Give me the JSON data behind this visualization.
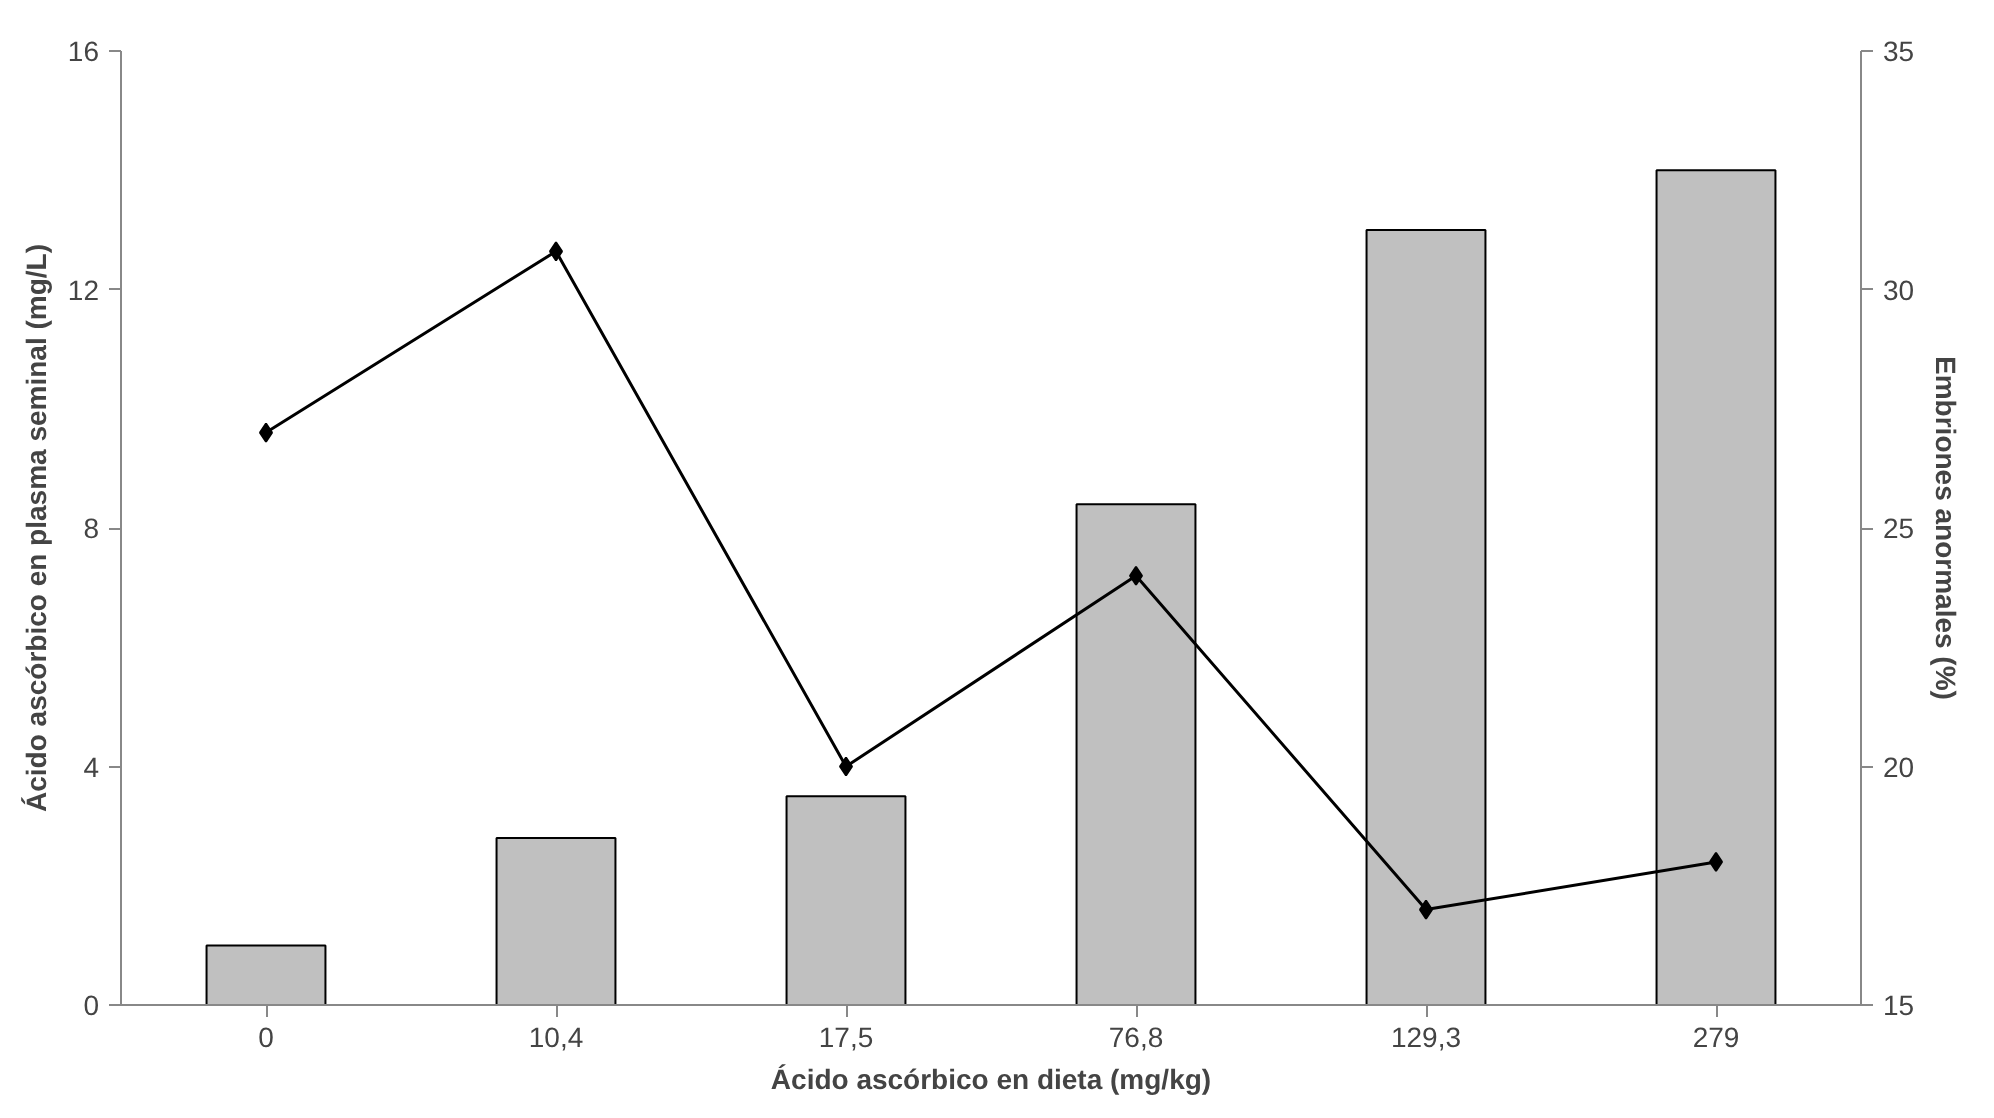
{
  "chart_data": {
    "type": "bar",
    "xlabel": "Ácido ascórbico en dieta (mg/kg)",
    "ylabel": "Ácido ascórbico en plasma seminal (mg/L)",
    "y2label": "Embriones anormales (%)",
    "categories": [
      "0",
      "10,4",
      "17,5",
      "76,8",
      "129,3",
      "279"
    ],
    "series": [
      {
        "color": "#c0c0c0",
        "values": [
          1.0,
          2.8,
          3.5,
          8.4,
          13.0,
          14.0
        ]
      },
      {
        "type": "line",
        "axis": "y2",
        "color": "#000000",
        "marker": "diamond",
        "values": [
          27.0,
          30.8,
          20.0,
          24.0,
          17.0,
          18.0
        ]
      }
    ],
    "ylim": [
      0,
      16
    ],
    "yticks": [
      0,
      4,
      8,
      12,
      16
    ],
    "y2lim": [
      15,
      35
    ],
    "y2ticks": [
      15,
      20,
      25,
      30,
      35
    ],
    "grid": false
  }
}
